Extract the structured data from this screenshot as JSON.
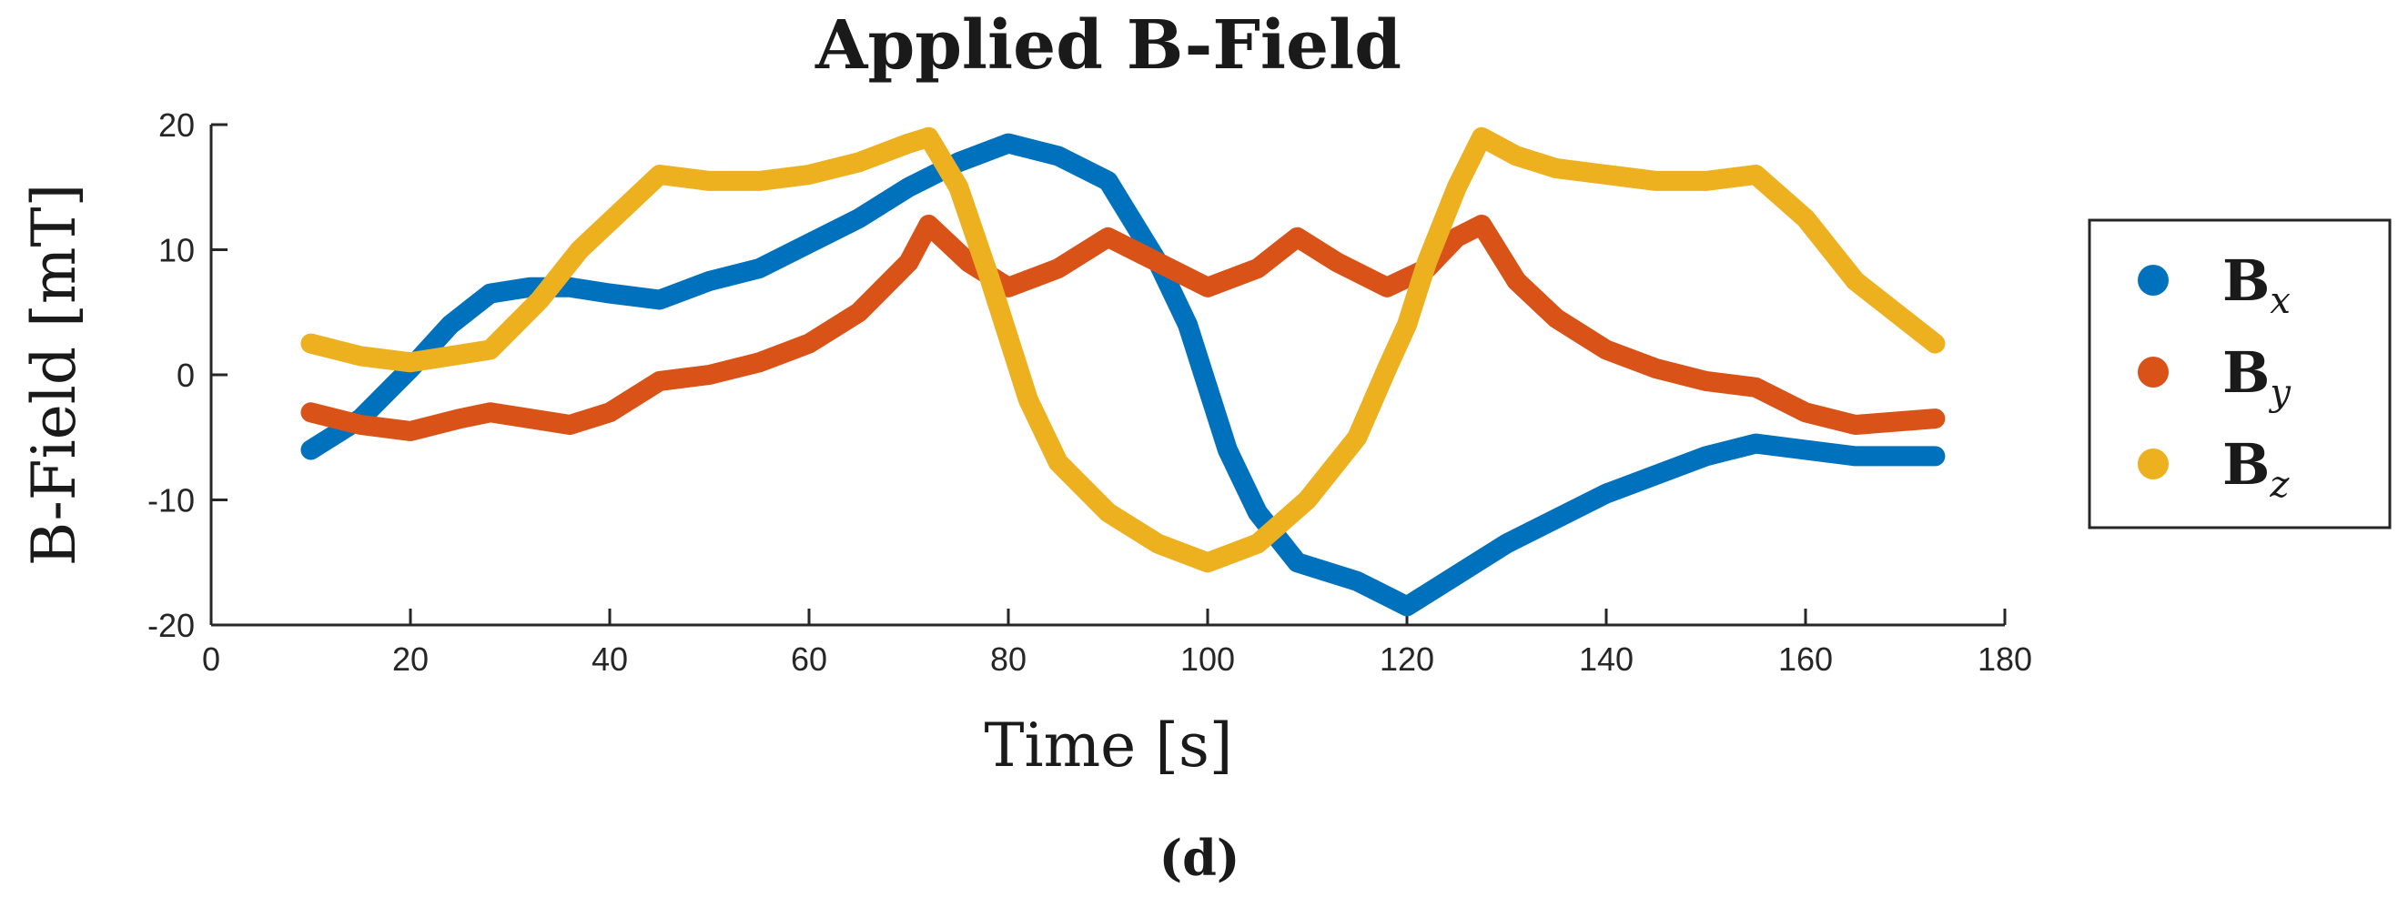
{
  "chart_data": {
    "type": "line",
    "title": "Applied B-Field",
    "xlabel": "Time [s]",
    "ylabel": "B-Field [mT]",
    "caption": "(d)",
    "xlim": [
      0,
      180
    ],
    "ylim": [
      -20,
      20
    ],
    "xticks": [
      0,
      20,
      40,
      60,
      80,
      100,
      120,
      140,
      160,
      180
    ],
    "yticks": [
      -20,
      -10,
      0,
      10,
      20
    ],
    "grid": false,
    "legend_position": "right",
    "series": [
      {
        "name": "B",
        "subscript": "x",
        "color": "#0072BD",
        "x": [
          10,
          15,
          20,
          24,
          28,
          32,
          36,
          40,
          45,
          50,
          55,
          60,
          65,
          70,
          75,
          80,
          85,
          90,
          95,
          98,
          100,
          102,
          105,
          109,
          115,
          120,
          125,
          130,
          140,
          150,
          155,
          160,
          165,
          173
        ],
        "y": [
          -6,
          -3.5,
          0.5,
          4,
          6.5,
          7,
          7,
          6.5,
          6,
          7.5,
          8.5,
          10.5,
          12.5,
          15,
          17,
          18.5,
          17.5,
          15.5,
          9,
          4,
          -1,
          -6,
          -11,
          -15,
          -16.5,
          -18.5,
          -16,
          -13.5,
          -9.5,
          -6.5,
          -5.5,
          -6,
          -6.5,
          -6.5
        ]
      },
      {
        "name": "B",
        "subscript": "y",
        "color": "#D95319",
        "x": [
          10,
          15,
          20,
          25,
          28,
          32,
          36,
          40,
          45,
          50,
          55,
          60,
          65,
          70,
          72,
          76,
          80,
          85,
          90,
          95,
          100,
          105,
          109,
          113,
          118,
          122,
          125,
          127.5,
          131,
          135,
          140,
          145,
          150,
          155,
          160,
          165,
          173
        ],
        "y": [
          -3,
          -4,
          -4.5,
          -3.5,
          -3,
          -3.5,
          -4,
          -3,
          -0.5,
          0,
          1,
          2.5,
          5,
          9,
          12,
          9,
          7,
          8.5,
          11,
          9,
          7,
          8.5,
          11,
          9,
          7,
          8.5,
          11,
          12,
          7.5,
          4.5,
          2,
          0.5,
          -0.5,
          -1,
          -3,
          -4,
          -3.5
        ]
      },
      {
        "name": "B",
        "subscript": "z",
        "color": "#EDB120",
        "x": [
          10,
          15,
          20,
          24,
          28,
          33,
          37,
          41,
          45,
          50,
          55,
          60,
          65,
          70,
          72,
          75,
          78,
          80,
          82,
          85,
          90,
          95,
          100,
          105,
          110,
          115,
          118,
          120,
          122,
          125,
          127.5,
          131,
          135,
          140,
          145,
          150,
          155,
          160,
          165,
          173
        ],
        "y": [
          2.5,
          1.5,
          1,
          1.5,
          2,
          6,
          10,
          13,
          16,
          15.5,
          15.5,
          16,
          17,
          18.5,
          19,
          15,
          8,
          3,
          -2,
          -7,
          -11,
          -13.5,
          -15,
          -13.5,
          -10,
          -5,
          0.5,
          4,
          9,
          15,
          19,
          17.5,
          16.5,
          16,
          15.5,
          15.5,
          16,
          12.5,
          7.5,
          2.5
        ]
      }
    ]
  }
}
